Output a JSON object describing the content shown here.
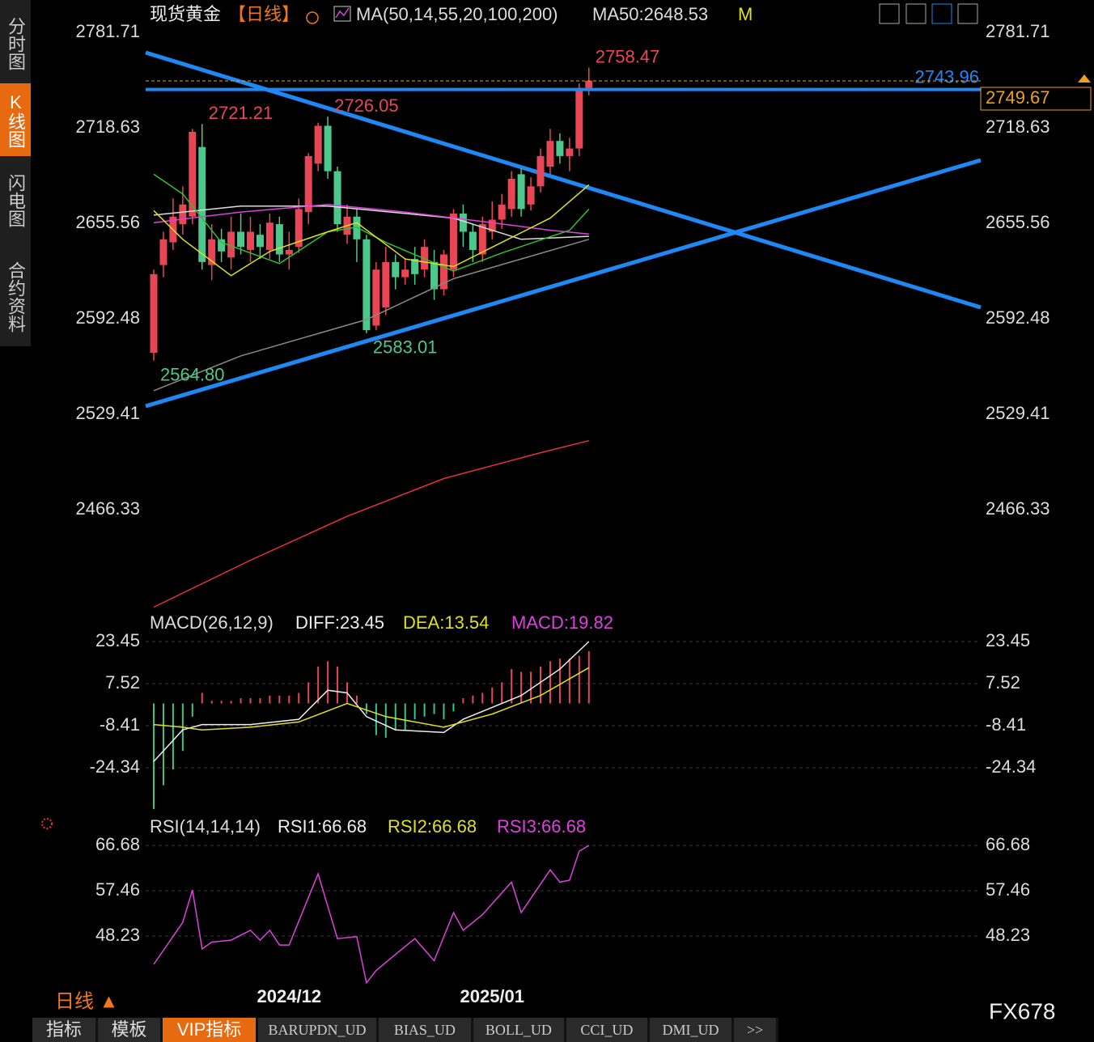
{
  "header": {
    "title": "现货黄金",
    "period": "【日线】",
    "ma_label": "MA(50,14,55,20,100,200)",
    "ma50": "MA50:2648.53",
    "m": "M"
  },
  "sidebar": [
    "分时图",
    "K线图",
    "闪电图",
    "合约资料"
  ],
  "chart_data": [
    {
      "type": "candlestick",
      "up_color": "#e84655",
      "down_color": "#4cc88c",
      "categories": [
        null,
        null,
        null,
        null,
        null,
        null,
        null,
        null,
        null,
        null,
        null,
        null,
        null,
        null,
        "2024/12",
        null,
        null,
        null,
        null,
        null,
        null,
        null,
        null,
        null,
        null,
        null,
        null,
        null,
        null,
        null,
        null,
        null,
        null,
        null,
        null,
        "2025/01",
        null,
        null,
        null,
        null,
        null,
        null,
        null,
        null,
        null,
        null
      ],
      "open": [
        2570,
        2628,
        2643,
        2655,
        2660,
        2706,
        2628,
        2645,
        2633,
        2650,
        2638,
        2648,
        2638,
        2655,
        2635,
        2640,
        2663,
        2695,
        2720,
        2690,
        2648,
        2660,
        2645,
        2588,
        2600,
        2630,
        2620,
        2632,
        2625,
        2630,
        2612,
        2625,
        2662,
        2650,
        2635,
        2650,
        2658,
        2665,
        2688,
        2668,
        2680,
        2693,
        2710,
        2700,
        2705,
        2745
      ],
      "high": [
        2625,
        2650,
        2672,
        2680,
        2718,
        2721.21,
        2655,
        2652,
        2660,
        2662,
        2660,
        2655,
        2662,
        2660,
        2650,
        2672,
        2702,
        2722,
        2726.05,
        2693,
        2668,
        2665,
        2648,
        2630,
        2640,
        2635,
        2632,
        2640,
        2645,
        2638,
        2638,
        2665,
        2668,
        2655,
        2660,
        2670,
        2675,
        2690,
        2692,
        2686,
        2705,
        2718,
        2715,
        2712,
        2748,
        2758.47
      ],
      "low": [
        2564.8,
        2620,
        2638,
        2648,
        2655,
        2625,
        2618,
        2630,
        2625,
        2635,
        2630,
        2632,
        2632,
        2630,
        2625,
        2636,
        2655,
        2690,
        2685,
        2650,
        2642,
        2630,
        2583.01,
        2585,
        2595,
        2612,
        2615,
        2615,
        2620,
        2605,
        2608,
        2620,
        2640,
        2630,
        2630,
        2645,
        2652,
        2660,
        2660,
        2664,
        2676,
        2688,
        2695,
        2690,
        2700,
        2740
      ],
      "close": [
        2622,
        2645,
        2660,
        2668,
        2716,
        2630,
        2645,
        2637,
        2650,
        2640,
        2650,
        2640,
        2656,
        2635,
        2638,
        2665,
        2700,
        2720,
        2690,
        2655,
        2660,
        2645,
        2585,
        2625,
        2630,
        2620,
        2625,
        2622,
        2640,
        2612,
        2635,
        2662,
        2650,
        2638,
        2655,
        2658,
        2668,
        2685,
        2665,
        2680,
        2700,
        2710,
        2700,
        2705,
        2745,
        2749.67
      ],
      "series": [
        {
          "color": "#e8303a",
          "x": [
            0,
            10,
            20,
            30,
            40,
            45
          ],
          "values": [
            2402,
            2433,
            2462,
            2487,
            2504,
            2512
          ]
        },
        {
          "color": "#8a8a8a",
          "x": [
            0,
            9,
            22,
            31,
            38,
            45
          ],
          "values": [
            2545,
            2568,
            2592,
            2619,
            2632,
            2645
          ]
        },
        {
          "color": "#dddddd",
          "x": [
            0,
            9,
            18,
            31,
            38,
            45
          ],
          "values": [
            2661,
            2667,
            2667,
            2659,
            2645,
            2647
          ]
        },
        {
          "color": "#e040e0",
          "x": [
            0,
            9,
            18,
            26,
            35,
            41,
            45
          ],
          "values": [
            2656,
            2663,
            2668,
            2663,
            2656,
            2651,
            2648.53
          ]
        },
        {
          "color": "#30c030",
          "x": [
            0,
            3,
            7,
            13,
            18,
            21,
            24,
            31,
            36,
            43,
            45
          ],
          "values": [
            2688,
            2675,
            2643,
            2629,
            2650,
            2653,
            2643,
            2624,
            2636,
            2651,
            2665
          ]
        },
        {
          "color": "#e0e020",
          "x": [
            0,
            3,
            8,
            12,
            18,
            21,
            26,
            31,
            36,
            41,
            45
          ],
          "values": [
            2664,
            2645,
            2621,
            2637,
            2650,
            2656,
            2632,
            2627,
            2643,
            2659,
            2681
          ]
        }
      ],
      "annotations": [
        {
          "value": 2721.21,
          "at": 5,
          "kind": "high"
        },
        {
          "value": 2726.05,
          "at": 18,
          "kind": "high"
        },
        {
          "value": 2758.47,
          "at": 45,
          "kind": "high"
        },
        {
          "value": {
            "value": 2564.8,
            "label": "2564.80"
          },
          "at": 0,
          "kind": "low"
        },
        {
          "value": 2583.01,
          "at": 22,
          "kind": "low"
        }
      ],
      "hline": {
        "value": 2743.96,
        "color": "#1e88f5"
      },
      "last_price": {
        "value": 2749.67,
        "color": "#f0a020"
      },
      "ylim": [
        2401.2,
        2803.1
      ],
      "yticks": [
        2781.71,
        2718.63,
        2655.56,
        2592.48,
        2529.41,
        2466.33
      ],
      "grid": false
    },
    {
      "type": "macd",
      "title": "MACD(26,12,9)",
      "histogram_name": "MACD:19.82",
      "histogram_color": "#e040e0",
      "values": [
        -40,
        -31,
        -25,
        -18,
        -5,
        4,
        1,
        1,
        1,
        2,
        2,
        2,
        3,
        3,
        3,
        4,
        8,
        14,
        16,
        14,
        8,
        3,
        -4,
        -12,
        -13,
        -10,
        -10,
        -6,
        -5,
        -4,
        -6,
        -3,
        2,
        3,
        4,
        6,
        8,
        13,
        12,
        12,
        14,
        16,
        17,
        17,
        18,
        19.82
      ],
      "series": [
        {
          "name": "DIFF:23.45",
          "color": "#eeeeee",
          "x": [
            0,
            3,
            5,
            10,
            15,
            18,
            20,
            22,
            25,
            30,
            32,
            38,
            42,
            45
          ],
          "values": [
            -22,
            -10,
            -8,
            -8,
            -6,
            5,
            4,
            -5,
            -10,
            -11,
            -6,
            3,
            13,
            23.45
          ]
        },
        {
          "name": "DEA:13.54",
          "color": "#e0e020",
          "x": [
            0,
            3,
            5,
            10,
            15,
            20,
            24,
            30,
            35,
            40,
            45
          ],
          "values": [
            -8,
            -9,
            -10,
            -9,
            -7,
            0,
            -5,
            -9,
            -4,
            3,
            13.54
          ]
        }
      ],
      "ylim": [
        -40.5,
        27.43
      ],
      "yticks": [
        23.45,
        7.52,
        -8.41,
        -24.34
      ],
      "grid": true
    },
    {
      "type": "rsi",
      "title": "RSI(14,14,14)",
      "legend": [
        {
          "name": "RSI1:66.68",
          "color": "#eeeeee"
        },
        {
          "name": "RSI2:66.68",
          "color": "#e0e020"
        },
        {
          "name": "RSI3:66.68",
          "color": "#e040e0"
        }
      ],
      "series": [
        {
          "color": "#e040e0",
          "x": [
            0,
            3,
            4,
            5,
            6,
            8,
            10,
            11,
            12,
            13,
            14,
            17,
            19,
            21,
            22,
            23,
            25,
            27,
            29,
            31,
            32,
            34,
            37,
            38,
            41,
            42,
            43,
            44,
            45
          ],
          "values": [
            42.46,
            51,
            57.6,
            45.6,
            47,
            47.4,
            49.4,
            47.4,
            49.4,
            46.4,
            46.4,
            60.9,
            47.7,
            48.1,
            38.7,
            41.2,
            44.5,
            47.7,
            43.2,
            53,
            49.4,
            52.6,
            59.2,
            53,
            61.7,
            59.2,
            59.6,
            65.5,
            66.68
          ]
        }
      ],
      "ylim": [
        37.03,
        68.33
      ],
      "yticks": [
        66.68,
        57.46,
        48.23
      ],
      "grid": true
    }
  ],
  "footer": {
    "period": "日线 ▲",
    "brand": "FX678",
    "tabs": [
      "指标",
      "模板",
      "VIP指标",
      "BARUPDN_UD",
      "BIAS_UD",
      "BOLL_UD",
      "CCI_UD",
      "DMI_UD",
      ">>"
    ]
  }
}
